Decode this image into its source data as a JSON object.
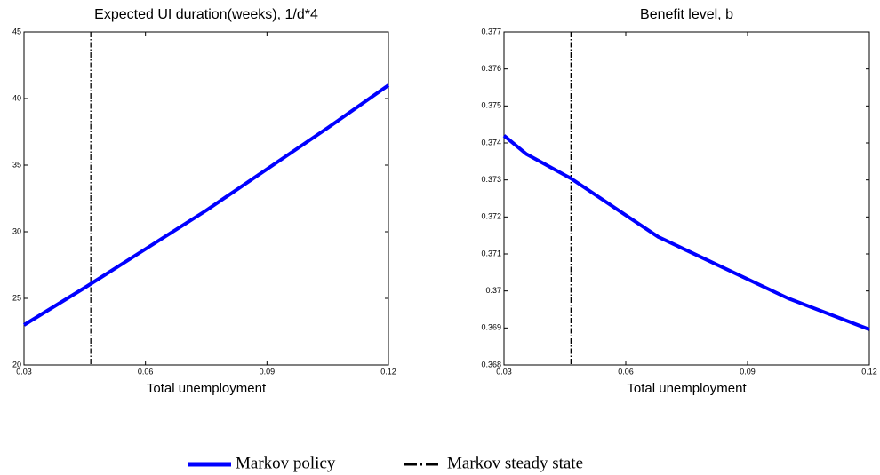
{
  "chart_data": [
    {
      "type": "line",
      "title": "Expected UI duration(weeks), 1/d*4",
      "x_label": "Total unemployment",
      "xlim": [
        0.03,
        0.12
      ],
      "xticks": [
        0.03,
        0.06,
        0.09,
        0.12
      ],
      "ylim": [
        20,
        45
      ],
      "yticks": [
        20,
        25,
        30,
        35,
        40,
        45
      ],
      "x": [
        0.03,
        0.045,
        0.06,
        0.075,
        0.09,
        0.105,
        0.12
      ],
      "series": [
        {
          "name": "Markov policy",
          "color": "#0000ff",
          "values": [
            23,
            25.8,
            28.7,
            31.6,
            34.7,
            37.8,
            41
          ]
        }
      ],
      "vline": {
        "name": "Markov steady state",
        "x": 0.0465,
        "color": "#000000"
      }
    },
    {
      "type": "line",
      "title": "Benefit level, b",
      "x_label": "Total unemployment",
      "xlim": [
        0.03,
        0.12
      ],
      "xticks": [
        0.03,
        0.06,
        0.09,
        0.12
      ],
      "ylim": [
        0.368,
        0.377
      ],
      "yticks": [
        0.368,
        0.369,
        0.37,
        0.371,
        0.372,
        0.373,
        0.374,
        0.375,
        0.376,
        0.377
      ],
      "x": [
        0.03,
        0.0355,
        0.0465,
        0.068,
        0.1,
        0.12
      ],
      "series": [
        {
          "color": "#0000ff",
          "values": [
            0.3742,
            0.3737,
            0.37304,
            0.37146,
            0.3698,
            0.36896
          ]
        }
      ],
      "vline": {
        "x": 0.0465,
        "color": "#000000"
      }
    }
  ]
}
